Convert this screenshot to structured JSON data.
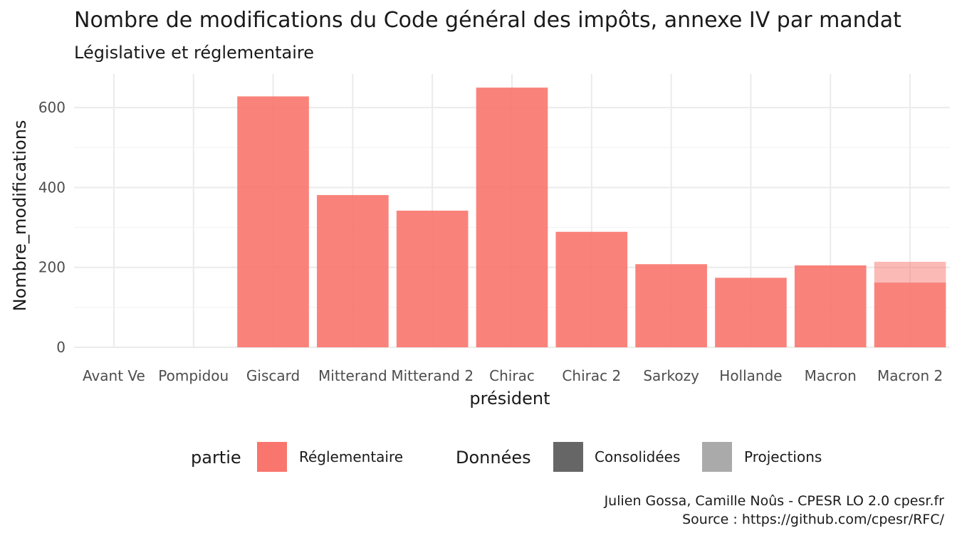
{
  "chart_data": {
    "type": "bar",
    "title": "Nombre de modifications du Code général des impôts, annexe IV par mandat",
    "subtitle": "Législative et réglementaire",
    "xlabel": "président",
    "ylabel": "Nombre_modifications",
    "ylim": [
      0,
      680
    ],
    "yticks": [
      0,
      200,
      400,
      600
    ],
    "grid": true,
    "categories": [
      "Avant Ve",
      "Pompidou",
      "Giscard",
      "Mitterand",
      "Mitterand 2",
      "Chirac",
      "Chirac 2",
      "Sarkozy",
      "Hollande",
      "Macron",
      "Macron 2"
    ],
    "series": [
      {
        "name": "Consolidées",
        "values": [
          0,
          0,
          628,
          381,
          342,
          650,
          289,
          208,
          174,
          205,
          162
        ]
      },
      {
        "name": "Projections",
        "values": [
          0,
          0,
          0,
          0,
          0,
          0,
          0,
          0,
          0,
          0,
          52
        ]
      }
    ],
    "legend": {
      "position": "bottom",
      "groups": [
        {
          "title": "partie",
          "items": [
            {
              "label": "Réglementaire",
              "color": "#F8766D"
            }
          ]
        },
        {
          "title": "Données",
          "items": [
            {
              "label": "Consolidées",
              "color": "#666666"
            },
            {
              "label": "Projections",
              "color": "#AAAAAA"
            }
          ]
        }
      ]
    },
    "colors": {
      "bar": "#F8766D",
      "consolidated_alpha": 0.9,
      "projection_alpha": 0.5
    }
  },
  "caption": {
    "line1": "Julien Gossa, Camille Noûs - CPESR LO 2.0 cpesr.fr",
    "line2": "Source : https://github.com/cpesr/RFC/"
  }
}
